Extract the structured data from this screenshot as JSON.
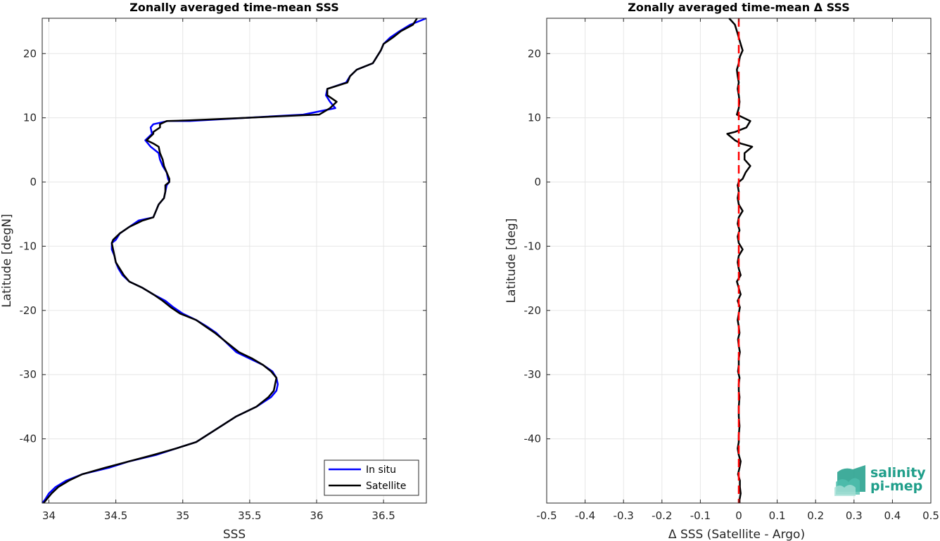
{
  "chart_data": [
    {
      "type": "line",
      "title": "Zonally averaged time-mean SSS",
      "xlabel": "SSS",
      "ylabel": "Latitude [degN]",
      "xlim": [
        33.95,
        36.82
      ],
      "ylim": [
        -50,
        25.5
      ],
      "xticks": [
        "34",
        "34.5",
        "35",
        "35.5",
        "36",
        "36.5"
      ],
      "yticks": [
        "20",
        "10",
        "0",
        "-10",
        "-20",
        "-30",
        "-40"
      ],
      "grid": true,
      "legend_position": "bottom-right",
      "series": [
        {
          "name": "In situ",
          "color": "#0000ff",
          "points": [
            [
              36.82,
              25.5
            ],
            [
              36.7,
              24.5
            ],
            [
              36.62,
              23.5
            ],
            [
              36.55,
              22.5
            ],
            [
              36.5,
              21.5
            ],
            [
              36.48,
              20.5
            ],
            [
              36.45,
              19.5
            ],
            [
              36.42,
              18.5
            ],
            [
              36.3,
              17.5
            ],
            [
              36.25,
              16.5
            ],
            [
              36.22,
              15.5
            ],
            [
              36.08,
              14.5
            ],
            [
              36.07,
              13.5
            ],
            [
              36.1,
              12.5
            ],
            [
              36.14,
              11.5
            ],
            [
              35.9,
              10.5
            ],
            [
              35.05,
              9.5
            ],
            [
              34.89,
              9.5
            ],
            [
              34.78,
              9
            ],
            [
              34.76,
              8.5
            ],
            [
              34.77,
              7.5
            ],
            [
              34.72,
              6.5
            ],
            [
              34.76,
              5.5
            ],
            [
              34.82,
              4.5
            ],
            [
              34.83,
              3.5
            ],
            [
              34.85,
              2.5
            ],
            [
              34.88,
              1.5
            ],
            [
              34.89,
              0.5
            ],
            [
              34.9,
              0
            ],
            [
              34.88,
              -0.5
            ],
            [
              34.87,
              -1.5
            ],
            [
              34.86,
              -2.5
            ],
            [
              34.82,
              -3.5
            ],
            [
              34.8,
              -4.5
            ],
            [
              34.78,
              -5.5
            ],
            [
              34.67,
              -6
            ],
            [
              34.6,
              -7
            ],
            [
              34.53,
              -8
            ],
            [
              34.5,
              -9
            ],
            [
              34.47,
              -9.5
            ],
            [
              34.47,
              -10.5
            ],
            [
              34.49,
              -11.5
            ],
            [
              34.5,
              -12.5
            ],
            [
              34.52,
              -13.5
            ],
            [
              34.55,
              -14.5
            ],
            [
              34.6,
              -15.5
            ],
            [
              34.7,
              -16.5
            ],
            [
              34.78,
              -17.5
            ],
            [
              34.87,
              -18.5
            ],
            [
              34.93,
              -19.5
            ],
            [
              35.0,
              -20.5
            ],
            [
              35.1,
              -21.5
            ],
            [
              35.18,
              -22.5
            ],
            [
              35.25,
              -23.5
            ],
            [
              35.3,
              -24.5
            ],
            [
              35.35,
              -25.5
            ],
            [
              35.4,
              -26.5
            ],
            [
              35.5,
              -27.5
            ],
            [
              35.6,
              -28.5
            ],
            [
              35.67,
              -29.5
            ],
            [
              35.7,
              -30.5
            ],
            [
              35.71,
              -31.5
            ],
            [
              35.7,
              -32.5
            ],
            [
              35.66,
              -33.5
            ],
            [
              35.55,
              -35
            ],
            [
              35.4,
              -36.5
            ],
            [
              35.25,
              -38.5
            ],
            [
              35.1,
              -40.5
            ],
            [
              34.95,
              -41.5
            ],
            [
              34.8,
              -42.5
            ],
            [
              34.6,
              -43.5
            ],
            [
              34.45,
              -44.5
            ],
            [
              34.25,
              -45.5
            ],
            [
              34.13,
              -46.5
            ],
            [
              34.05,
              -47.5
            ],
            [
              34.0,
              -48.5
            ],
            [
              33.97,
              -49.5
            ],
            [
              33.95,
              -50
            ]
          ]
        },
        {
          "name": "Satellite",
          "color": "#000000",
          "points": [
            [
              36.75,
              25.5
            ],
            [
              36.72,
              24.5
            ],
            [
              36.63,
              23.5
            ],
            [
              36.57,
              22.5
            ],
            [
              36.5,
              21.5
            ],
            [
              36.48,
              20.5
            ],
            [
              36.45,
              19.5
            ],
            [
              36.42,
              18.5
            ],
            [
              36.3,
              17.5
            ],
            [
              36.25,
              16.5
            ],
            [
              36.23,
              15.5
            ],
            [
              36.08,
              14.5
            ],
            [
              36.08,
              13.5
            ],
            [
              36.15,
              12.5
            ],
            [
              36.1,
              11.5
            ],
            [
              36.02,
              10.5
            ],
            [
              35.9,
              10.4
            ],
            [
              35.05,
              9.6
            ],
            [
              34.88,
              9.5
            ],
            [
              34.83,
              9
            ],
            [
              34.83,
              8.5
            ],
            [
              34.78,
              7.8
            ],
            [
              34.78,
              7.5
            ],
            [
              34.73,
              6.5
            ],
            [
              34.78,
              6
            ],
            [
              34.82,
              5.5
            ],
            [
              34.83,
              4.5
            ],
            [
              34.85,
              3.5
            ],
            [
              34.86,
              2.5
            ],
            [
              34.88,
              1.5
            ],
            [
              34.9,
              0.5
            ],
            [
              34.9,
              0
            ],
            [
              34.87,
              -0.5
            ],
            [
              34.87,
              -1.5
            ],
            [
              34.86,
              -2.5
            ],
            [
              34.82,
              -3.5
            ],
            [
              34.8,
              -4.5
            ],
            [
              34.78,
              -5.5
            ],
            [
              34.7,
              -6
            ],
            [
              34.6,
              -7
            ],
            [
              34.53,
              -8
            ],
            [
              34.48,
              -9
            ],
            [
              34.47,
              -9.5
            ],
            [
              34.48,
              -10.5
            ],
            [
              34.49,
              -11.5
            ],
            [
              34.5,
              -12.5
            ],
            [
              34.53,
              -13.5
            ],
            [
              34.56,
              -14.5
            ],
            [
              34.6,
              -15.5
            ],
            [
              34.7,
              -16.5
            ],
            [
              34.78,
              -17.5
            ],
            [
              34.85,
              -18.5
            ],
            [
              34.91,
              -19.5
            ],
            [
              34.98,
              -20.5
            ],
            [
              35.1,
              -21.5
            ],
            [
              35.17,
              -22.5
            ],
            [
              35.24,
              -23.5
            ],
            [
              35.3,
              -24.5
            ],
            [
              35.36,
              -25.5
            ],
            [
              35.42,
              -26.5
            ],
            [
              35.52,
              -27.5
            ],
            [
              35.6,
              -28.5
            ],
            [
              35.66,
              -29.5
            ],
            [
              35.7,
              -30.5
            ],
            [
              35.69,
              -31.5
            ],
            [
              35.68,
              -32.5
            ],
            [
              35.64,
              -33.5
            ],
            [
              35.55,
              -35
            ],
            [
              35.4,
              -36.5
            ],
            [
              35.25,
              -38.5
            ],
            [
              35.1,
              -40.5
            ],
            [
              34.95,
              -41.5
            ],
            [
              34.78,
              -42.5
            ],
            [
              34.6,
              -43.5
            ],
            [
              34.42,
              -44.5
            ],
            [
              34.25,
              -45.5
            ],
            [
              34.15,
              -46.5
            ],
            [
              34.07,
              -47.5
            ],
            [
              34.02,
              -48.5
            ],
            [
              33.98,
              -49.5
            ],
            [
              33.96,
              -50
            ]
          ]
        }
      ]
    },
    {
      "type": "line",
      "title": "Zonally averaged time-mean Δ SSS",
      "xlabel": "Δ SSS (Satellite - Argo)",
      "ylabel": "Latitude [deg]",
      "xlim": [
        -0.5,
        0.5
      ],
      "ylim": [
        -50,
        25.5
      ],
      "xticks": [
        "-0.5",
        "-0.4",
        "-0.3",
        "-0.2",
        "-0.1",
        "0",
        "0.1",
        "0.2",
        "0.3",
        "0.4",
        "0.5"
      ],
      "yticks": [
        "20",
        "10",
        "0",
        "-10",
        "-20",
        "-30",
        "-40"
      ],
      "grid": true,
      "zero_line": {
        "x": 0,
        "color": "#ff0000",
        "style": "dashed"
      },
      "series": [
        {
          "color": "#000000",
          "points": [
            [
              -0.025,
              25.5
            ],
            [
              -0.01,
              24.5
            ],
            [
              -0.005,
              23.5
            ],
            [
              0.0,
              22.5
            ],
            [
              0.005,
              21.5
            ],
            [
              0.01,
              20.5
            ],
            [
              0.003,
              19.5
            ],
            [
              0.0,
              18.5
            ],
            [
              -0.005,
              17.5
            ],
            [
              -0.003,
              16.5
            ],
            [
              0.0,
              15.5
            ],
            [
              -0.003,
              14.5
            ],
            [
              0.0,
              13.5
            ],
            [
              0.002,
              12.5
            ],
            [
              0.0,
              11.5
            ],
            [
              -0.005,
              10.5
            ],
            [
              0.03,
              9.5
            ],
            [
              0.02,
              8.5
            ],
            [
              -0.01,
              7.8
            ],
            [
              -0.03,
              7.5
            ],
            [
              -0.01,
              6.5
            ],
            [
              0.005,
              6
            ],
            [
              0.035,
              5.5
            ],
            [
              0.015,
              4.5
            ],
            [
              0.015,
              3.5
            ],
            [
              0.03,
              2.5
            ],
            [
              0.018,
              1.5
            ],
            [
              0.01,
              0.5
            ],
            [
              0.0,
              0
            ],
            [
              -0.003,
              -0.5
            ],
            [
              0.0,
              -1.5
            ],
            [
              -0.003,
              -2.5
            ],
            [
              0.0,
              -3.5
            ],
            [
              0.01,
              -4.5
            ],
            [
              0.0,
              -5.5
            ],
            [
              -0.003,
              -6.5
            ],
            [
              0.002,
              -7.5
            ],
            [
              -0.003,
              -8.5
            ],
            [
              0.0,
              -9.5
            ],
            [
              0.01,
              -10.5
            ],
            [
              0.0,
              -11.5
            ],
            [
              -0.003,
              -12.5
            ],
            [
              0.0,
              -13.5
            ],
            [
              0.005,
              -14.5
            ],
            [
              -0.005,
              -15.5
            ],
            [
              0.0,
              -16.5
            ],
            [
              0.005,
              -17.5
            ],
            [
              -0.003,
              -18.5
            ],
            [
              0.003,
              -19.5
            ],
            [
              0.0,
              -20.5
            ],
            [
              -0.003,
              -21.5
            ],
            [
              0.0,
              -22.5
            ],
            [
              0.002,
              -23.5
            ],
            [
              -0.002,
              -24.5
            ],
            [
              0.0,
              -25.5
            ],
            [
              0.003,
              -26.5
            ],
            [
              0.0,
              -27.5
            ],
            [
              0.0,
              -28.5
            ],
            [
              -0.002,
              -29.5
            ],
            [
              0.002,
              -30.5
            ],
            [
              0.0,
              -31.5
            ],
            [
              0.0,
              -32.5
            ],
            [
              0.002,
              -33.5
            ],
            [
              0.0,
              -35
            ],
            [
              0.0,
              -36.5
            ],
            [
              0.002,
              -38
            ],
            [
              0.0,
              -39.5
            ],
            [
              0.0,
              -40.5
            ],
            [
              -0.003,
              -41.5
            ],
            [
              0.0,
              -42.5
            ],
            [
              0.005,
              -43.5
            ],
            [
              0.002,
              -44.5
            ],
            [
              -0.002,
              -45.5
            ],
            [
              0.003,
              -46.5
            ],
            [
              0.003,
              -47.5
            ],
            [
              0.005,
              -48.5
            ],
            [
              0.002,
              -49.5
            ],
            [
              0.002,
              -50
            ]
          ]
        }
      ],
      "logo": {
        "line1": "salinity",
        "line2": "pi-mep",
        "color": "#1f9e8a"
      }
    }
  ]
}
